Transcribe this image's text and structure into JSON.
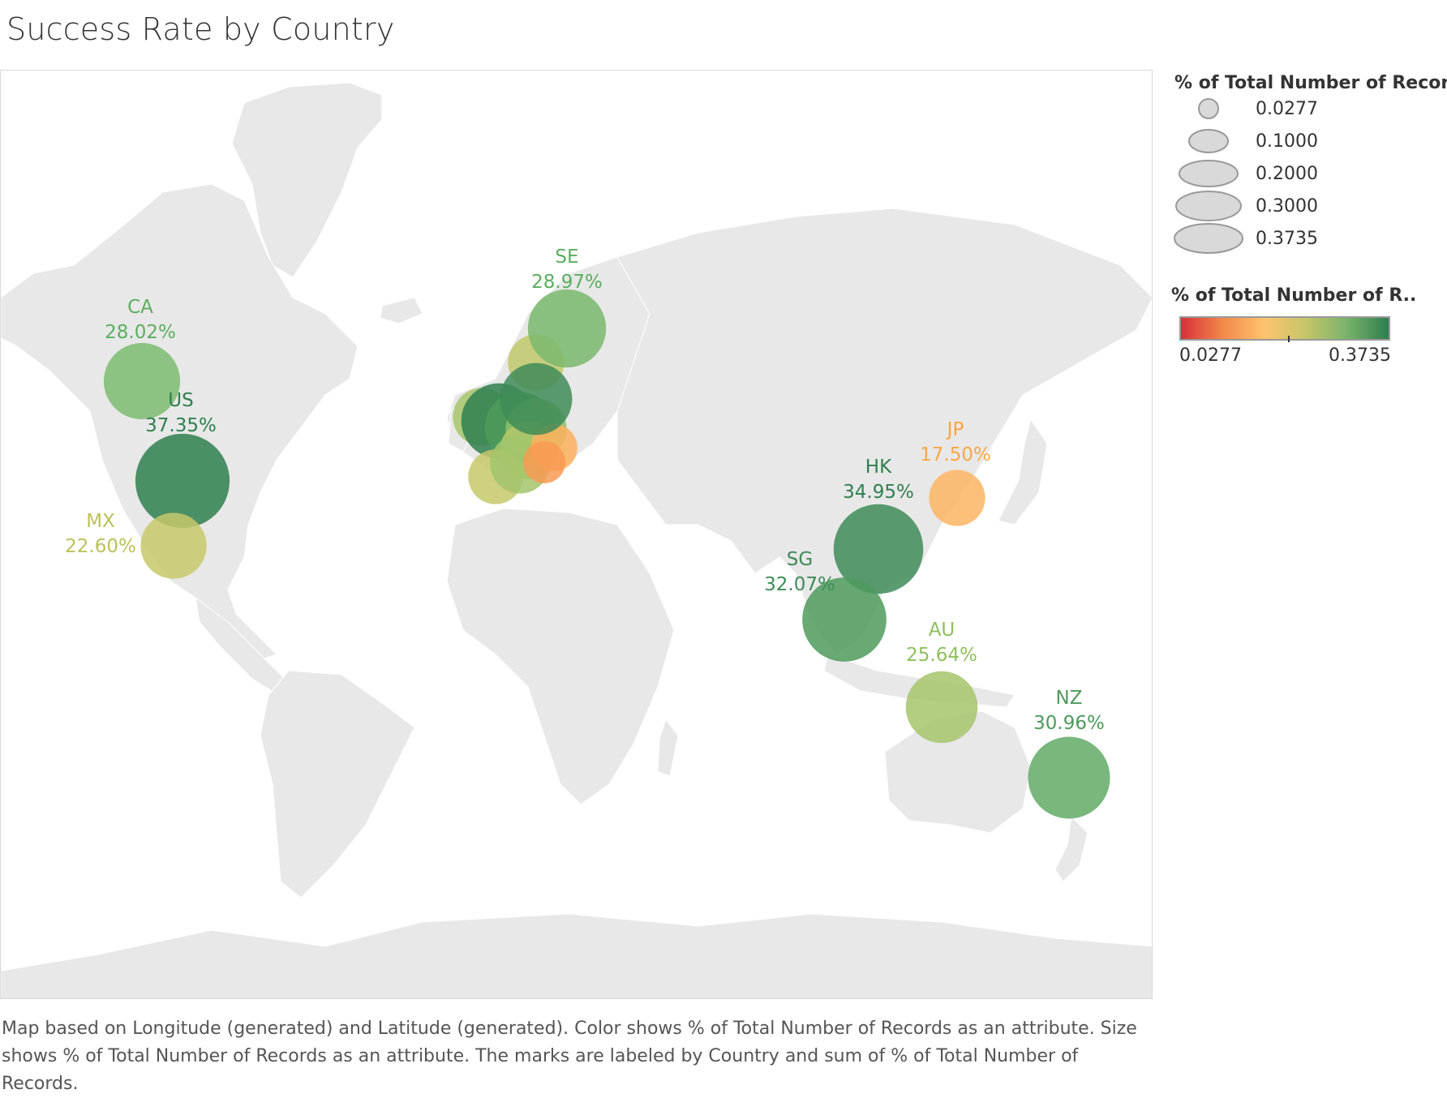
{
  "title": "Success Rate by Country",
  "caption": "Map based on Longitude (generated) and Latitude (generated).  Color shows % of Total Number of Records as an attribute.  Size shows % of Total Number of Records as an attribute.  The marks are labeled by Country and sum of % of Total Number of Records.",
  "legend": {
    "size_title": "% of Total Number of Records",
    "size_values": [
      "0.0277",
      "0.1000",
      "0.2000",
      "0.3000",
      "0.3735"
    ],
    "color_title": "% of Total Number of R..",
    "color_min": "0.0277",
    "color_max": "0.3735",
    "ramp_colors": [
      "#d7303a",
      "#f2884a",
      "#fdc36e",
      "#c6c66a",
      "#79b36b",
      "#2e7d4f"
    ]
  },
  "colors": {
    "land": "#e8e8e8",
    "border": "#ffffff",
    "water": "#ffffff"
  },
  "chart_data": {
    "type": "map-bubble",
    "labeled_marks": [
      {
        "code": "CA",
        "label": "28.02%",
        "value": 0.2802,
        "color": "#7cbc70",
        "text_color": "#5aae5e"
      },
      {
        "code": "US",
        "label": "37.35%",
        "value": 0.3735,
        "color": "#2f7f4f",
        "text_color": "#2f7f4f"
      },
      {
        "code": "MX",
        "label": "22.60%",
        "value": 0.226,
        "color": "#c7c96a",
        "text_color": "#bcc05a"
      },
      {
        "code": "SE",
        "label": "28.97%",
        "value": 0.2897,
        "color": "#79b86c",
        "text_color": "#5aae5e"
      },
      {
        "code": "JP",
        "label": "17.50%",
        "value": 0.175,
        "color": "#fdb563",
        "text_color": "#f8a642"
      },
      {
        "code": "HK",
        "label": "34.95%",
        "value": 0.3495,
        "color": "#3e8b57",
        "text_color": "#2f7f4f"
      },
      {
        "code": "SG",
        "label": "32.07%",
        "value": 0.3207,
        "color": "#4e9a5c",
        "text_color": "#3e8b57"
      },
      {
        "code": "AU",
        "label": "25.64%",
        "value": 0.2564,
        "color": "#a6c46b",
        "text_color": "#8fbf5e"
      },
      {
        "code": "NZ",
        "label": "30.96%",
        "value": 0.3096,
        "color": "#62aa66",
        "text_color": "#4e9a5c"
      }
    ],
    "unlabeled_marks": [
      {
        "value": 0.25,
        "color": "#a7c66b"
      },
      {
        "value": 0.36,
        "color": "#2f7f4f"
      },
      {
        "value": 0.33,
        "color": "#4e9a5c"
      },
      {
        "value": 0.27,
        "color": "#90bf66"
      },
      {
        "value": 0.24,
        "color": "#c0c86a"
      },
      {
        "value": 0.25,
        "color": "#b3c76a"
      },
      {
        "value": 0.23,
        "color": "#c6c96a"
      },
      {
        "value": 0.26,
        "color": "#a2c46b"
      },
      {
        "value": 0.18,
        "color": "#fdb05d"
      },
      {
        "value": 0.15,
        "color": "#f89a52"
      },
      {
        "value": 0.34,
        "color": "#3e8b57"
      }
    ]
  }
}
